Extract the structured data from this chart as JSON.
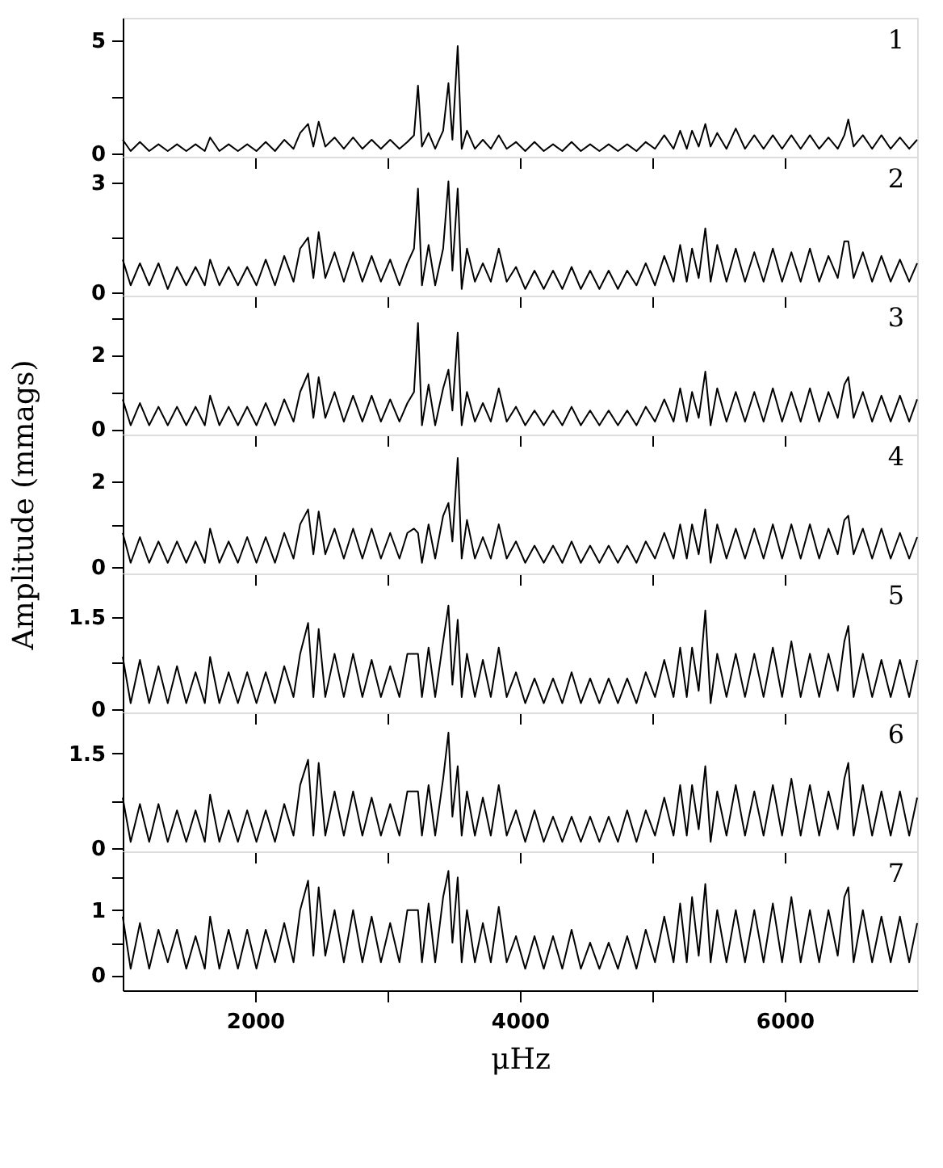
{
  "chart_data": [
    {
      "type": "line",
      "color": "#000000",
      "annotations": [
        "1"
      ],
      "tick_labels": "y",
      "xlim": [
        1000,
        7000
      ],
      "xticks": [
        {
          "value": 2000,
          "label": null
        },
        {
          "value": 3000,
          "label": null
        },
        {
          "value": 4000,
          "label": null
        },
        {
          "value": 5000,
          "label": null
        },
        {
          "value": 6000,
          "label": null
        }
      ],
      "ylim": [
        -0.15,
        6
      ],
      "yticks": [
        0,
        {
          "value": 2.5,
          "label": null
        },
        5
      ],
      "x": [
        1000,
        1060,
        1130,
        1200,
        1270,
        1340,
        1410,
        1480,
        1550,
        1620,
        1660,
        1730,
        1800,
        1870,
        1940,
        2010,
        2080,
        2150,
        2220,
        2290,
        2340,
        2400,
        2440,
        2480,
        2530,
        2600,
        2670,
        2740,
        2810,
        2880,
        2950,
        3020,
        3090,
        3150,
        3200,
        3230,
        3260,
        3310,
        3360,
        3420,
        3460,
        3490,
        3530,
        3560,
        3600,
        3660,
        3720,
        3780,
        3840,
        3900,
        3970,
        4040,
        4110,
        4180,
        4250,
        4320,
        4390,
        4460,
        4530,
        4600,
        4670,
        4740,
        4810,
        4880,
        4950,
        5020,
        5090,
        5160,
        5210,
        5260,
        5300,
        5350,
        5400,
        5440,
        5490,
        5560,
        5630,
        5700,
        5770,
        5840,
        5910,
        5980,
        6050,
        6120,
        6190,
        6260,
        6330,
        6400,
        6450,
        6480,
        6520,
        6590,
        6660,
        6730,
        6800,
        6870,
        6940,
        7000
      ],
      "values": [
        0.6,
        0.1,
        0.5,
        0.1,
        0.4,
        0.1,
        0.4,
        0.1,
        0.4,
        0.1,
        0.7,
        0.1,
        0.4,
        0.1,
        0.4,
        0.1,
        0.5,
        0.1,
        0.6,
        0.2,
        0.9,
        1.3,
        0.3,
        1.4,
        0.3,
        0.7,
        0.2,
        0.7,
        0.2,
        0.6,
        0.2,
        0.6,
        0.2,
        0.5,
        0.8,
        3.0,
        0.3,
        0.9,
        0.2,
        1.0,
        3.1,
        0.6,
        4.75,
        0.2,
        1.0,
        0.2,
        0.6,
        0.2,
        0.8,
        0.2,
        0.5,
        0.1,
        0.5,
        0.1,
        0.4,
        0.1,
        0.5,
        0.1,
        0.4,
        0.1,
        0.4,
        0.1,
        0.4,
        0.1,
        0.5,
        0.2,
        0.8,
        0.2,
        1.0,
        0.2,
        1.0,
        0.3,
        1.3,
        0.3,
        0.9,
        0.2,
        1.1,
        0.2,
        0.8,
        0.2,
        0.8,
        0.2,
        0.8,
        0.2,
        0.8,
        0.2,
        0.7,
        0.2,
        0.8,
        1.5,
        0.3,
        0.8,
        0.2,
        0.8,
        0.2,
        0.7,
        0.2,
        0.6
      ]
    },
    {
      "type": "line",
      "color": "#000000",
      "annotations": [
        "2"
      ],
      "tick_labels": "y",
      "xlim": [
        1000,
        7000
      ],
      "xticks": [
        {
          "value": 2000,
          "label": null
        },
        {
          "value": 3000,
          "label": null
        },
        {
          "value": 4000,
          "label": null
        },
        {
          "value": 5000,
          "label": null
        },
        {
          "value": 6000,
          "label": null
        }
      ],
      "ylim": [
        -0.08,
        3.7
      ],
      "yticks": [
        0,
        {
          "value": 1.5,
          "label": null
        },
        3
      ],
      "x": [
        1000,
        1060,
        1130,
        1200,
        1270,
        1340,
        1410,
        1480,
        1550,
        1620,
        1660,
        1730,
        1800,
        1870,
        1940,
        2010,
        2080,
        2150,
        2220,
        2290,
        2340,
        2400,
        2440,
        2480,
        2530,
        2600,
        2670,
        2740,
        2810,
        2880,
        2950,
        3020,
        3090,
        3150,
        3200,
        3230,
        3260,
        3310,
        3360,
        3420,
        3460,
        3490,
        3530,
        3560,
        3600,
        3660,
        3720,
        3780,
        3840,
        3900,
        3970,
        4040,
        4110,
        4180,
        4250,
        4320,
        4390,
        4460,
        4530,
        4600,
        4670,
        4740,
        4810,
        4880,
        4950,
        5020,
        5090,
        5160,
        5210,
        5260,
        5300,
        5350,
        5400,
        5440,
        5490,
        5560,
        5630,
        5700,
        5770,
        5840,
        5910,
        5980,
        6050,
        6120,
        6190,
        6260,
        6330,
        6400,
        6450,
        6480,
        6520,
        6590,
        6660,
        6730,
        6800,
        6870,
        6940,
        7000
      ],
      "values": [
        0.9,
        0.2,
        0.8,
        0.2,
        0.8,
        0.1,
        0.7,
        0.2,
        0.7,
        0.2,
        0.9,
        0.2,
        0.7,
        0.2,
        0.7,
        0.2,
        0.9,
        0.2,
        1.0,
        0.3,
        1.2,
        1.5,
        0.4,
        1.65,
        0.4,
        1.1,
        0.3,
        1.1,
        0.3,
        1.0,
        0.3,
        0.9,
        0.2,
        0.8,
        1.2,
        2.83,
        0.2,
        1.3,
        0.2,
        1.2,
        3.03,
        0.6,
        2.83,
        0.1,
        1.2,
        0.3,
        0.8,
        0.3,
        1.2,
        0.3,
        0.7,
        0.1,
        0.6,
        0.1,
        0.6,
        0.1,
        0.7,
        0.1,
        0.6,
        0.1,
        0.6,
        0.1,
        0.6,
        0.2,
        0.8,
        0.2,
        1.0,
        0.3,
        1.3,
        0.3,
        1.2,
        0.4,
        1.75,
        0.3,
        1.3,
        0.3,
        1.2,
        0.3,
        1.1,
        0.3,
        1.2,
        0.3,
        1.1,
        0.3,
        1.2,
        0.3,
        1.0,
        0.4,
        1.4,
        1.4,
        0.4,
        1.1,
        0.3,
        1.0,
        0.3,
        0.9,
        0.3,
        0.8
      ]
    },
    {
      "type": "line",
      "color": "#000000",
      "annotations": [
        "3"
      ],
      "tick_labels": "y",
      "xlim": [
        1000,
        7000
      ],
      "xticks": [
        {
          "value": 2000,
          "label": null
        },
        {
          "value": 3000,
          "label": null
        },
        {
          "value": 4000,
          "label": null
        },
        {
          "value": 5000,
          "label": null
        },
        {
          "value": 6000,
          "label": null
        }
      ],
      "ylim": [
        -0.15,
        3.6
      ],
      "yticks": [
        0,
        {
          "value": 1,
          "label": null
        },
        2,
        {
          "value": 3,
          "label": null
        }
      ],
      "x": [
        1000,
        1060,
        1130,
        1200,
        1270,
        1340,
        1410,
        1480,
        1550,
        1620,
        1660,
        1730,
        1800,
        1870,
        1940,
        2010,
        2080,
        2150,
        2220,
        2290,
        2340,
        2400,
        2440,
        2480,
        2530,
        2600,
        2670,
        2740,
        2810,
        2880,
        2950,
        3020,
        3090,
        3150,
        3200,
        3230,
        3260,
        3310,
        3360,
        3420,
        3460,
        3490,
        3530,
        3560,
        3600,
        3660,
        3720,
        3780,
        3840,
        3900,
        3970,
        4040,
        4110,
        4180,
        4250,
        4320,
        4390,
        4460,
        4530,
        4600,
        4670,
        4740,
        4810,
        4880,
        4950,
        5020,
        5090,
        5160,
        5210,
        5260,
        5300,
        5350,
        5400,
        5440,
        5490,
        5560,
        5630,
        5700,
        5770,
        5840,
        5910,
        5980,
        6050,
        6120,
        6190,
        6260,
        6330,
        6400,
        6450,
        6480,
        6520,
        6590,
        6660,
        6730,
        6800,
        6870,
        6940,
        7000
      ],
      "values": [
        0.8,
        0.1,
        0.7,
        0.1,
        0.6,
        0.1,
        0.6,
        0.1,
        0.6,
        0.1,
        0.9,
        0.1,
        0.6,
        0.1,
        0.6,
        0.1,
        0.7,
        0.1,
        0.8,
        0.2,
        1.0,
        1.5,
        0.3,
        1.4,
        0.3,
        1.0,
        0.2,
        0.9,
        0.2,
        0.9,
        0.2,
        0.8,
        0.2,
        0.7,
        1.0,
        2.86,
        0.1,
        1.2,
        0.1,
        1.1,
        1.6,
        0.5,
        2.6,
        0.1,
        1.0,
        0.2,
        0.7,
        0.2,
        1.1,
        0.2,
        0.6,
        0.1,
        0.5,
        0.1,
        0.5,
        0.1,
        0.6,
        0.1,
        0.5,
        0.1,
        0.5,
        0.1,
        0.5,
        0.1,
        0.6,
        0.2,
        0.8,
        0.2,
        1.1,
        0.2,
        1.0,
        0.3,
        1.55,
        0.1,
        1.1,
        0.2,
        1.0,
        0.2,
        1.0,
        0.2,
        1.1,
        0.2,
        1.0,
        0.2,
        1.1,
        0.2,
        1.0,
        0.3,
        1.2,
        1.4,
        0.3,
        1.0,
        0.2,
        0.9,
        0.2,
        0.9,
        0.2,
        0.8
      ]
    },
    {
      "type": "line",
      "color": "#000000",
      "annotations": [
        "4"
      ],
      "tick_labels": "y",
      "ylabel": "Amplitude (mmags)",
      "xlim": [
        1000,
        7000
      ],
      "xticks": [
        {
          "value": 2000,
          "label": null
        },
        {
          "value": 3000,
          "label": null
        },
        {
          "value": 4000,
          "label": null
        },
        {
          "value": 5000,
          "label": null
        },
        {
          "value": 6000,
          "label": null
        }
      ],
      "ylim": [
        -0.15,
        3.1
      ],
      "yticks": [
        0,
        {
          "value": 1,
          "label": null
        },
        2
      ],
      "x": [
        1000,
        1060,
        1130,
        1200,
        1270,
        1340,
        1410,
        1480,
        1550,
        1620,
        1660,
        1730,
        1800,
        1870,
        1940,
        2010,
        2080,
        2150,
        2220,
        2290,
        2340,
        2400,
        2440,
        2480,
        2530,
        2600,
        2670,
        2740,
        2810,
        2880,
        2950,
        3020,
        3090,
        3150,
        3200,
        3230,
        3260,
        3310,
        3360,
        3420,
        3460,
        3490,
        3530,
        3560,
        3600,
        3660,
        3720,
        3780,
        3840,
        3900,
        3970,
        4040,
        4110,
        4180,
        4250,
        4320,
        4390,
        4460,
        4530,
        4600,
        4670,
        4740,
        4810,
        4880,
        4950,
        5020,
        5090,
        5160,
        5210,
        5260,
        5300,
        5350,
        5400,
        5440,
        5490,
        5560,
        5630,
        5700,
        5770,
        5840,
        5910,
        5980,
        6050,
        6120,
        6190,
        6260,
        6330,
        6400,
        6450,
        6480,
        6520,
        6590,
        6660,
        6730,
        6800,
        6870,
        6940,
        7000
      ],
      "values": [
        0.8,
        0.1,
        0.7,
        0.1,
        0.6,
        0.1,
        0.6,
        0.1,
        0.6,
        0.1,
        0.9,
        0.1,
        0.6,
        0.1,
        0.7,
        0.1,
        0.7,
        0.1,
        0.8,
        0.2,
        1.0,
        1.35,
        0.3,
        1.3,
        0.3,
        0.9,
        0.2,
        0.9,
        0.2,
        0.9,
        0.2,
        0.8,
        0.2,
        0.8,
        0.9,
        0.8,
        0.1,
        1.0,
        0.2,
        1.2,
        1.5,
        0.6,
        2.55,
        0.2,
        1.1,
        0.2,
        0.7,
        0.2,
        1.0,
        0.2,
        0.6,
        0.1,
        0.5,
        0.1,
        0.5,
        0.1,
        0.6,
        0.1,
        0.5,
        0.1,
        0.5,
        0.1,
        0.5,
        0.1,
        0.6,
        0.2,
        0.8,
        0.2,
        1.0,
        0.2,
        1.0,
        0.3,
        1.35,
        0.1,
        1.0,
        0.2,
        0.9,
        0.2,
        0.9,
        0.2,
        1.0,
        0.2,
        1.0,
        0.2,
        1.0,
        0.2,
        0.9,
        0.3,
        1.1,
        1.2,
        0.3,
        0.9,
        0.2,
        0.9,
        0.2,
        0.8,
        0.2,
        0.7
      ]
    },
    {
      "type": "line",
      "color": "#000000",
      "annotations": [
        "5"
      ],
      "tick_labels": "y",
      "xlim": [
        1000,
        7000
      ],
      "xticks": [
        {
          "value": 2000,
          "label": null
        },
        {
          "value": 3000,
          "label": null
        },
        {
          "value": 4000,
          "label": null
        },
        {
          "value": 5000,
          "label": null
        },
        {
          "value": 6000,
          "label": null
        }
      ],
      "ylim": [
        -0.05,
        2.2
      ],
      "yticks": [
        0,
        {
          "value": 0.75,
          "label": null
        },
        1.5
      ],
      "x": [
        1000,
        1060,
        1130,
        1200,
        1270,
        1340,
        1410,
        1480,
        1550,
        1620,
        1660,
        1730,
        1800,
        1870,
        1940,
        2010,
        2080,
        2150,
        2220,
        2290,
        2340,
        2400,
        2440,
        2480,
        2530,
        2600,
        2670,
        2740,
        2810,
        2880,
        2950,
        3020,
        3090,
        3150,
        3200,
        3230,
        3260,
        3310,
        3360,
        3420,
        3460,
        3490,
        3530,
        3560,
        3600,
        3660,
        3720,
        3780,
        3840,
        3900,
        3970,
        4040,
        4110,
        4180,
        4250,
        4320,
        4390,
        4460,
        4530,
        4600,
        4670,
        4740,
        4810,
        4880,
        4950,
        5020,
        5090,
        5160,
        5210,
        5260,
        5300,
        5350,
        5400,
        5440,
        5490,
        5560,
        5630,
        5700,
        5770,
        5840,
        5910,
        5980,
        6050,
        6120,
        6190,
        6260,
        6330,
        6400,
        6450,
        6480,
        6520,
        6590,
        6660,
        6730,
        6800,
        6870,
        6940,
        7000
      ],
      "values": [
        0.85,
        0.1,
        0.8,
        0.1,
        0.7,
        0.1,
        0.7,
        0.1,
        0.6,
        0.1,
        0.85,
        0.1,
        0.6,
        0.1,
        0.6,
        0.1,
        0.6,
        0.1,
        0.7,
        0.2,
        0.9,
        1.4,
        0.2,
        1.3,
        0.2,
        0.9,
        0.2,
        0.9,
        0.2,
        0.8,
        0.2,
        0.7,
        0.2,
        0.9,
        0.9,
        0.9,
        0.2,
        1.0,
        0.2,
        1.1,
        1.68,
        0.4,
        1.45,
        0.2,
        0.9,
        0.2,
        0.8,
        0.2,
        1.0,
        0.2,
        0.6,
        0.1,
        0.5,
        0.1,
        0.5,
        0.1,
        0.6,
        0.1,
        0.5,
        0.1,
        0.5,
        0.1,
        0.5,
        0.1,
        0.6,
        0.2,
        0.8,
        0.2,
        1.0,
        0.2,
        1.0,
        0.3,
        1.6,
        0.1,
        0.9,
        0.2,
        0.9,
        0.2,
        0.9,
        0.2,
        1.0,
        0.2,
        1.1,
        0.2,
        0.9,
        0.2,
        0.9,
        0.3,
        1.1,
        1.35,
        0.2,
        0.9,
        0.2,
        0.8,
        0.2,
        0.8,
        0.2,
        0.8
      ]
    },
    {
      "type": "line",
      "color": "#000000",
      "annotations": [
        "6"
      ],
      "tick_labels": "y",
      "xlim": [
        1000,
        7000
      ],
      "xticks": [
        {
          "value": 2000,
          "label": null
        },
        {
          "value": 3000,
          "label": null
        },
        {
          "value": 4000,
          "label": null
        },
        {
          "value": 5000,
          "label": null
        },
        {
          "value": 6000,
          "label": null
        }
      ],
      "ylim": [
        -0.05,
        2.15
      ],
      "yticks": [
        0,
        {
          "value": 0.75,
          "label": null
        },
        1.5
      ],
      "x": [
        1000,
        1060,
        1130,
        1200,
        1270,
        1340,
        1410,
        1480,
        1550,
        1620,
        1660,
        1730,
        1800,
        1870,
        1940,
        2010,
        2080,
        2150,
        2220,
        2290,
        2340,
        2400,
        2440,
        2480,
        2530,
        2600,
        2670,
        2740,
        2810,
        2880,
        2950,
        3020,
        3090,
        3150,
        3200,
        3230,
        3260,
        3310,
        3360,
        3420,
        3460,
        3490,
        3530,
        3560,
        3600,
        3660,
        3720,
        3780,
        3840,
        3900,
        3970,
        4040,
        4110,
        4180,
        4250,
        4320,
        4390,
        4460,
        4530,
        4600,
        4670,
        4740,
        4810,
        4880,
        4950,
        5020,
        5090,
        5160,
        5210,
        5260,
        5300,
        5350,
        5400,
        5440,
        5490,
        5560,
        5630,
        5700,
        5770,
        5840,
        5910,
        5980,
        6050,
        6120,
        6190,
        6260,
        6330,
        6400,
        6450,
        6480,
        6520,
        6590,
        6660,
        6730,
        6800,
        6870,
        6940,
        7000
      ],
      "values": [
        0.8,
        0.1,
        0.7,
        0.1,
        0.7,
        0.1,
        0.6,
        0.1,
        0.6,
        0.1,
        0.85,
        0.1,
        0.6,
        0.1,
        0.6,
        0.1,
        0.6,
        0.1,
        0.7,
        0.2,
        1.0,
        1.4,
        0.2,
        1.35,
        0.2,
        0.9,
        0.2,
        0.9,
        0.2,
        0.8,
        0.2,
        0.7,
        0.2,
        0.9,
        0.9,
        0.9,
        0.2,
        1.0,
        0.2,
        1.1,
        1.83,
        0.5,
        1.3,
        0.2,
        0.9,
        0.2,
        0.8,
        0.2,
        1.0,
        0.2,
        0.6,
        0.1,
        0.6,
        0.1,
        0.5,
        0.1,
        0.5,
        0.1,
        0.5,
        0.1,
        0.5,
        0.1,
        0.6,
        0.1,
        0.6,
        0.2,
        0.8,
        0.2,
        1.0,
        0.2,
        1.0,
        0.3,
        1.3,
        0.1,
        0.9,
        0.2,
        1.0,
        0.2,
        0.9,
        0.2,
        1.0,
        0.2,
        1.1,
        0.2,
        1.0,
        0.2,
        0.9,
        0.3,
        1.1,
        1.35,
        0.2,
        1.0,
        0.2,
        0.9,
        0.2,
        0.9,
        0.2,
        0.8
      ]
    },
    {
      "type": "line",
      "color": "#000000",
      "annotations": [
        "7"
      ],
      "xlabel": "μHz",
      "xlim": [
        1000,
        7000
      ],
      "xticks": [
        2000,
        {
          "value": 3000,
          "label": null
        },
        4000,
        {
          "value": 5000,
          "label": null
        },
        6000
      ],
      "ylim": [
        -0.23,
        1.9
      ],
      "yticks": [
        0,
        {
          "value": 0.5,
          "label": null
        },
        1,
        {
          "value": 1.5,
          "label": null
        }
      ],
      "x": [
        1000,
        1060,
        1130,
        1200,
        1270,
        1340,
        1410,
        1480,
        1550,
        1620,
        1660,
        1730,
        1800,
        1870,
        1940,
        2010,
        2080,
        2150,
        2220,
        2290,
        2340,
        2400,
        2440,
        2480,
        2530,
        2600,
        2670,
        2740,
        2810,
        2880,
        2950,
        3020,
        3090,
        3150,
        3200,
        3230,
        3260,
        3310,
        3360,
        3420,
        3460,
        3490,
        3530,
        3560,
        3600,
        3660,
        3720,
        3780,
        3840,
        3900,
        3970,
        4040,
        4110,
        4180,
        4250,
        4320,
        4390,
        4460,
        4530,
        4600,
        4670,
        4740,
        4810,
        4880,
        4950,
        5020,
        5090,
        5160,
        5210,
        5260,
        5300,
        5350,
        5400,
        5440,
        5490,
        5560,
        5630,
        5700,
        5770,
        5840,
        5910,
        5980,
        6050,
        6120,
        6190,
        6260,
        6330,
        6400,
        6450,
        6480,
        6520,
        6590,
        6660,
        6730,
        6800,
        6870,
        6940,
        7000
      ],
      "values": [
        0.9,
        0.1,
        0.8,
        0.1,
        0.7,
        0.2,
        0.7,
        0.1,
        0.6,
        0.1,
        0.9,
        0.1,
        0.7,
        0.1,
        0.7,
        0.1,
        0.7,
        0.2,
        0.8,
        0.2,
        1.0,
        1.45,
        0.3,
        1.35,
        0.3,
        1.0,
        0.2,
        1.0,
        0.2,
        0.9,
        0.2,
        0.8,
        0.2,
        1.0,
        1.0,
        1.0,
        0.2,
        1.1,
        0.2,
        1.2,
        1.6,
        0.5,
        1.5,
        0.2,
        1.0,
        0.2,
        0.8,
        0.2,
        1.05,
        0.2,
        0.6,
        0.1,
        0.6,
        0.1,
        0.6,
        0.1,
        0.7,
        0.1,
        0.5,
        0.1,
        0.5,
        0.1,
        0.6,
        0.1,
        0.7,
        0.2,
        0.9,
        0.2,
        1.1,
        0.2,
        1.2,
        0.3,
        1.4,
        0.2,
        1.0,
        0.2,
        1.0,
        0.2,
        1.0,
        0.2,
        1.1,
        0.2,
        1.2,
        0.2,
        1.0,
        0.2,
        1.0,
        0.3,
        1.2,
        1.35,
        0.2,
        1.0,
        0.2,
        0.9,
        0.2,
        0.9,
        0.2,
        0.8
      ]
    }
  ]
}
